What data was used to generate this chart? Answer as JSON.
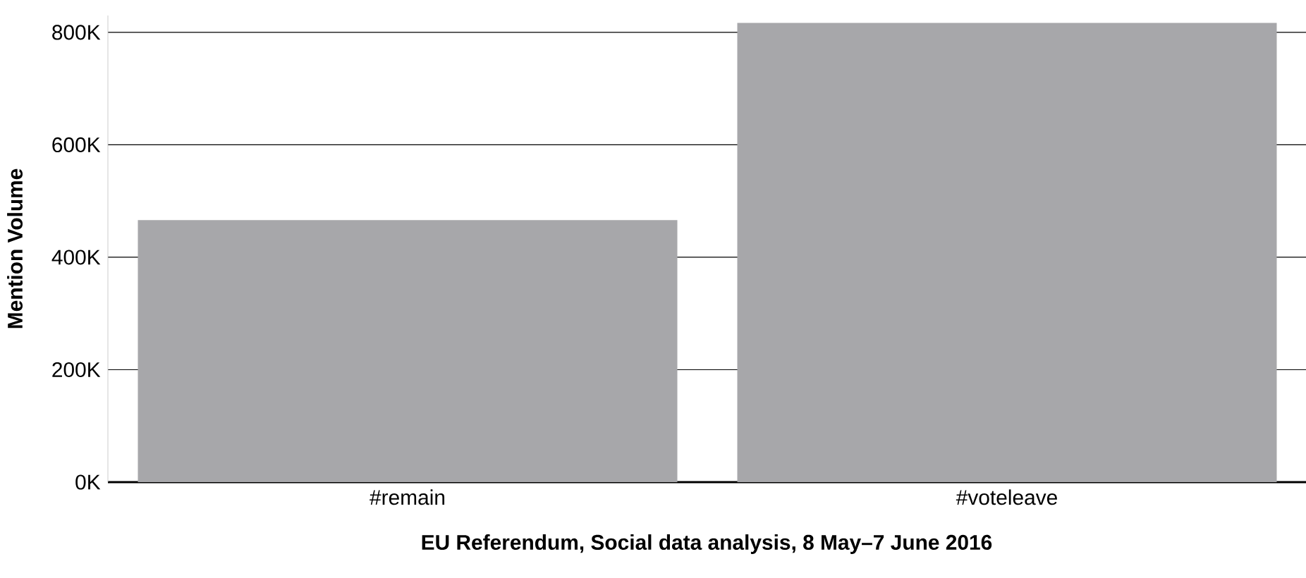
{
  "chart_data": {
    "type": "bar",
    "ylabel": "Mention Volume",
    "categories": [
      "#remain",
      "#voteleave"
    ],
    "values": [
      466000,
      817000
    ],
    "color": "#a7a7aa",
    "ylim": [
      0,
      830000
    ],
    "yticks": [
      {
        "value": 0,
        "label": "0K"
      },
      {
        "value": 200000,
        "label": "200K"
      },
      {
        "value": 400000,
        "label": "400K"
      },
      {
        "value": 600000,
        "label": "600K"
      },
      {
        "value": 800000,
        "label": "800K"
      }
    ],
    "grid": "y",
    "annotations": [
      "EU Referendum, Social data analysis, 8 May–7 June 2016"
    ]
  }
}
